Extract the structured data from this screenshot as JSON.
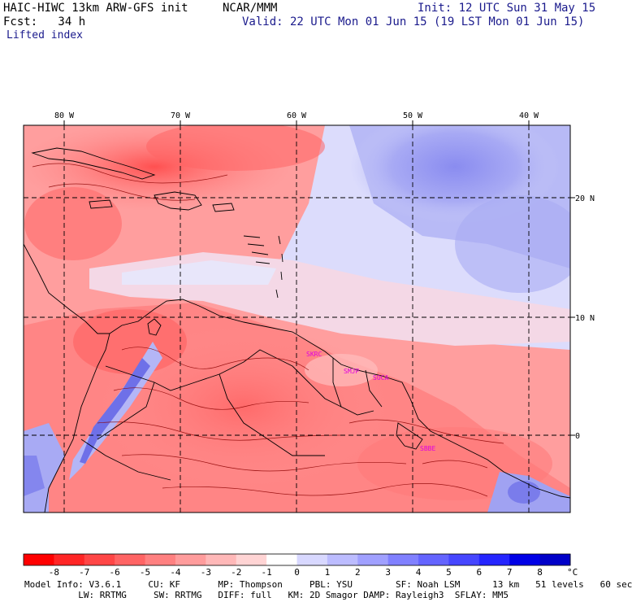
{
  "header": {
    "model": "HAIC-HIWC 13km ARW-GFS init",
    "org": "NCAR/MMM",
    "init": "Init: 12 UTC Sun 31 May 15",
    "fcst": "Fcst:   34 h",
    "valid": "Valid: 22 UTC Mon 01 Jun 15 (19 LST Mon 01 Jun 15)",
    "field": "Lifted index"
  },
  "axes": {
    "lon_labels": [
      "80 W",
      "70 W",
      "60 W",
      "50 W",
      "40 W"
    ],
    "lat_labels": [
      "20 N",
      "10 N",
      "0"
    ]
  },
  "stations": [
    "SKRC",
    "SMJP",
    "SOCA",
    "SBBE"
  ],
  "colorbar": {
    "labels": [
      "-8",
      "-7",
      "-6",
      "-5",
      "-4",
      "-3",
      "-2",
      "-1",
      "0",
      "1",
      "2",
      "3",
      "4",
      "5",
      "6",
      "7",
      "8"
    ],
    "unit": "°C",
    "colors": [
      "#ff0000",
      "#ff2525",
      "#ff4646",
      "#ff6464",
      "#ff8080",
      "#ff9c9c",
      "#ffb8b8",
      "#ffd4d4",
      "#ffffff",
      "#d8d8ff",
      "#bcbcff",
      "#a0a0ff",
      "#8080ff",
      "#6464ff",
      "#4646ff",
      "#2525ff",
      "#0000e6",
      "#0000c8"
    ]
  },
  "footer": {
    "line1": "Model Info: V3.6.1     CU: KF       MP: Thompson     PBL: YSU        SF: Noah LSM      13 km   51 levels   60 sec",
    "line2": "          LW: RRTMG     SW: RRTMG   DIFF: full   KM: 2D Smagor DAMP: Rayleigh3  SFLAY: MM5"
  }
}
